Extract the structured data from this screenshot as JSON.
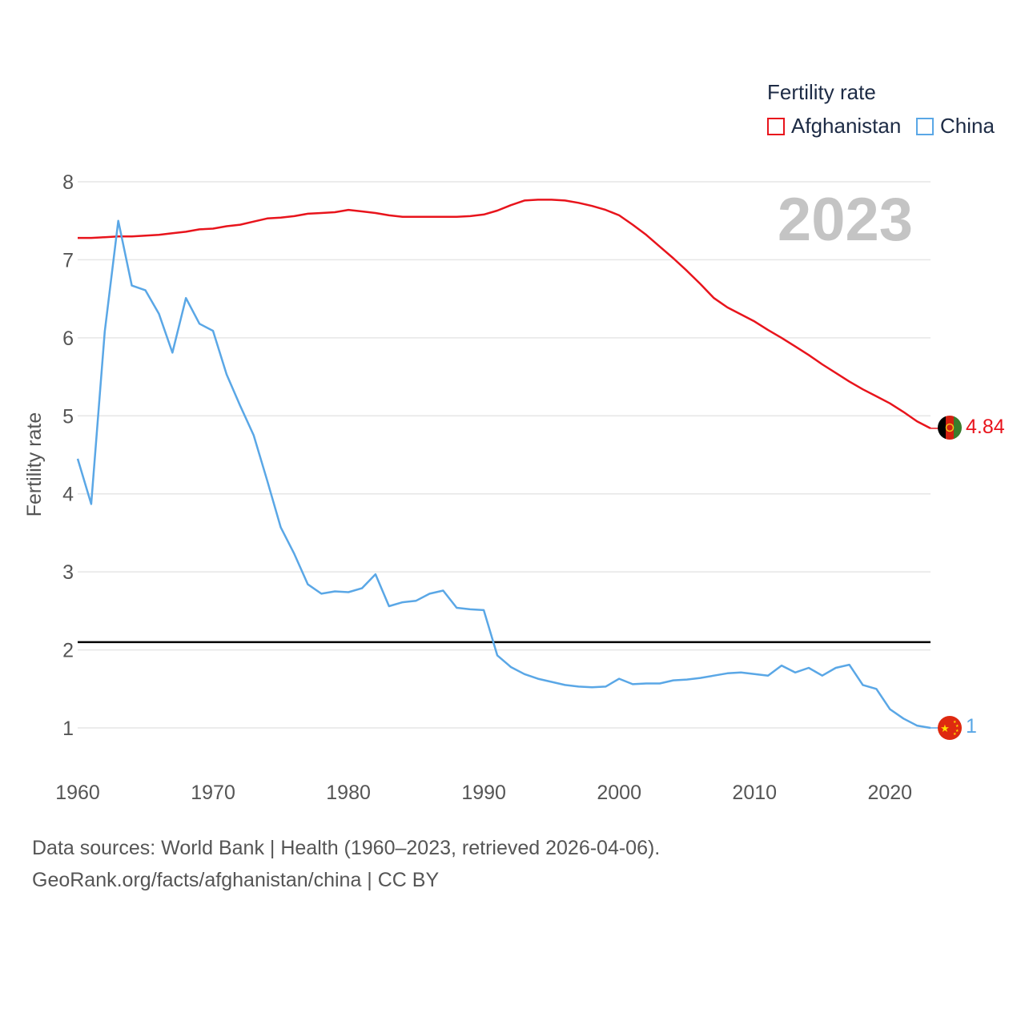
{
  "legend": {
    "title": "Fertility rate",
    "items": [
      {
        "name": "Afghanistan",
        "color": "#e8141c"
      },
      {
        "name": "China",
        "color": "#5aa7e6"
      }
    ]
  },
  "footer": {
    "line1": "Data sources: World Bank | Health (1960–2023, retrieved 2026-04-06).",
    "line2": "GeoRank.org/facts/afghanistan/china | CC BY"
  },
  "chart_data": {
    "type": "line",
    "title": "Fertility rate",
    "year_label": "2023",
    "xlabel": "",
    "ylabel": "Fertility rate",
    "xlim": [
      1960,
      2023
    ],
    "ylim": [
      0.5,
      8
    ],
    "x_ticks": [
      1960,
      1970,
      1980,
      1990,
      2000,
      2010,
      2020
    ],
    "y_ticks": [
      1,
      2,
      3,
      4,
      5,
      6,
      7,
      8
    ],
    "reference_line": 2.1,
    "x": [
      1960,
      1961,
      1962,
      1963,
      1964,
      1965,
      1966,
      1967,
      1968,
      1969,
      1970,
      1971,
      1972,
      1973,
      1974,
      1975,
      1976,
      1977,
      1978,
      1979,
      1980,
      1981,
      1982,
      1983,
      1984,
      1985,
      1986,
      1987,
      1988,
      1989,
      1990,
      1991,
      1992,
      1993,
      1994,
      1995,
      1996,
      1997,
      1998,
      1999,
      2000,
      2001,
      2002,
      2003,
      2004,
      2005,
      2006,
      2007,
      2008,
      2009,
      2010,
      2011,
      2012,
      2013,
      2014,
      2015,
      2016,
      2017,
      2018,
      2019,
      2020,
      2021,
      2022,
      2023
    ],
    "series": [
      {
        "name": "Afghanistan",
        "color": "#e8141c",
        "end_label": "4.84",
        "values": [
          7.28,
          7.28,
          7.29,
          7.3,
          7.3,
          7.31,
          7.32,
          7.34,
          7.36,
          7.39,
          7.4,
          7.43,
          7.45,
          7.49,
          7.53,
          7.54,
          7.56,
          7.59,
          7.6,
          7.61,
          7.64,
          7.62,
          7.6,
          7.57,
          7.55,
          7.55,
          7.55,
          7.55,
          7.55,
          7.56,
          7.58,
          7.63,
          7.7,
          7.76,
          7.77,
          7.77,
          7.76,
          7.73,
          7.69,
          7.64,
          7.57,
          7.45,
          7.32,
          7.17,
          7.02,
          6.86,
          6.69,
          6.51,
          6.39,
          6.3,
          6.21,
          6.1,
          6.0,
          5.89,
          5.78,
          5.66,
          5.55,
          5.44,
          5.34,
          5.25,
          5.16,
          5.05,
          4.93,
          4.84
        ]
      },
      {
        "name": "China",
        "color": "#5aa7e6",
        "end_label": "1",
        "values": [
          4.45,
          3.87,
          6.08,
          7.5,
          6.67,
          6.61,
          6.31,
          5.81,
          6.51,
          6.18,
          6.09,
          5.53,
          5.13,
          4.75,
          4.17,
          3.57,
          3.23,
          2.84,
          2.72,
          2.75,
          2.74,
          2.79,
          2.97,
          2.56,
          2.61,
          2.63,
          2.72,
          2.76,
          2.54,
          2.52,
          2.51,
          1.93,
          1.78,
          1.69,
          1.63,
          1.59,
          1.55,
          1.53,
          1.52,
          1.53,
          1.63,
          1.56,
          1.57,
          1.57,
          1.61,
          1.62,
          1.64,
          1.67,
          1.7,
          1.71,
          1.69,
          1.67,
          1.8,
          1.71,
          1.77,
          1.67,
          1.77,
          1.81,
          1.55,
          1.5,
          1.24,
          1.12,
          1.03,
          1.0
        ]
      }
    ]
  }
}
